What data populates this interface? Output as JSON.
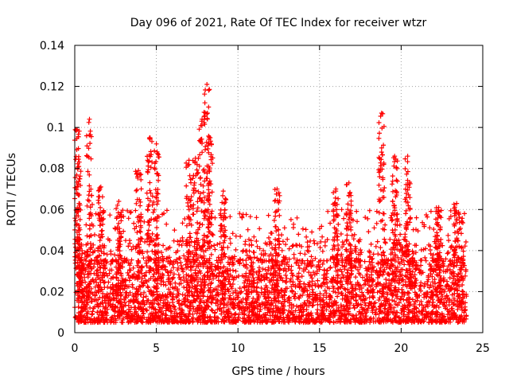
{
  "chart_data": {
    "type": "scatter",
    "title": "Day 096 of 2021, Rate Of TEC Index for receiver wtzr",
    "xlabel": "GPS time / hours",
    "ylabel": "ROTI / TECUs",
    "xlim": [
      0,
      25
    ],
    "ylim": [
      0,
      0.14
    ],
    "grid": true,
    "marker": "+",
    "series": [
      {
        "name": "ROTI",
        "color": "#ff0000"
      }
    ],
    "x_ticks": [
      "0",
      "5",
      "10",
      "15",
      "20",
      "25"
    ],
    "y_ticks": [
      "0",
      "0.02",
      "0.04",
      "0.06",
      "0.08",
      "0.1",
      "0.12",
      "0.14"
    ],
    "x_tick_values": [
      0,
      5,
      10,
      15,
      20,
      25
    ],
    "y_tick_values": [
      0,
      0.02,
      0.04,
      0.06,
      0.08,
      0.1,
      0.12,
      0.14
    ],
    "baseline": {
      "min": 0.005,
      "median": 0.014,
      "max": 0.035
    },
    "x_range": [
      0,
      24
    ],
    "peaks": [
      {
        "x": 0.15,
        "y": 0.099
      },
      {
        "x": 0.25,
        "y": 0.081
      },
      {
        "x": 0.9,
        "y": 0.104
      },
      {
        "x": 1.6,
        "y": 0.071
      },
      {
        "x": 2.7,
        "y": 0.064
      },
      {
        "x": 3.9,
        "y": 0.079
      },
      {
        "x": 4.6,
        "y": 0.095
      },
      {
        "x": 5.0,
        "y": 0.092
      },
      {
        "x": 7.0,
        "y": 0.084
      },
      {
        "x": 7.4,
        "y": 0.085
      },
      {
        "x": 7.8,
        "y": 0.104
      },
      {
        "x": 8.1,
        "y": 0.121
      },
      {
        "x": 8.3,
        "y": 0.095
      },
      {
        "x": 9.1,
        "y": 0.069
      },
      {
        "x": 12.4,
        "y": 0.07
      },
      {
        "x": 16.0,
        "y": 0.07
      },
      {
        "x": 16.8,
        "y": 0.073
      },
      {
        "x": 18.8,
        "y": 0.107
      },
      {
        "x": 19.6,
        "y": 0.086
      },
      {
        "x": 20.4,
        "y": 0.086
      },
      {
        "x": 22.3,
        "y": 0.061
      },
      {
        "x": 23.4,
        "y": 0.063
      }
    ]
  }
}
